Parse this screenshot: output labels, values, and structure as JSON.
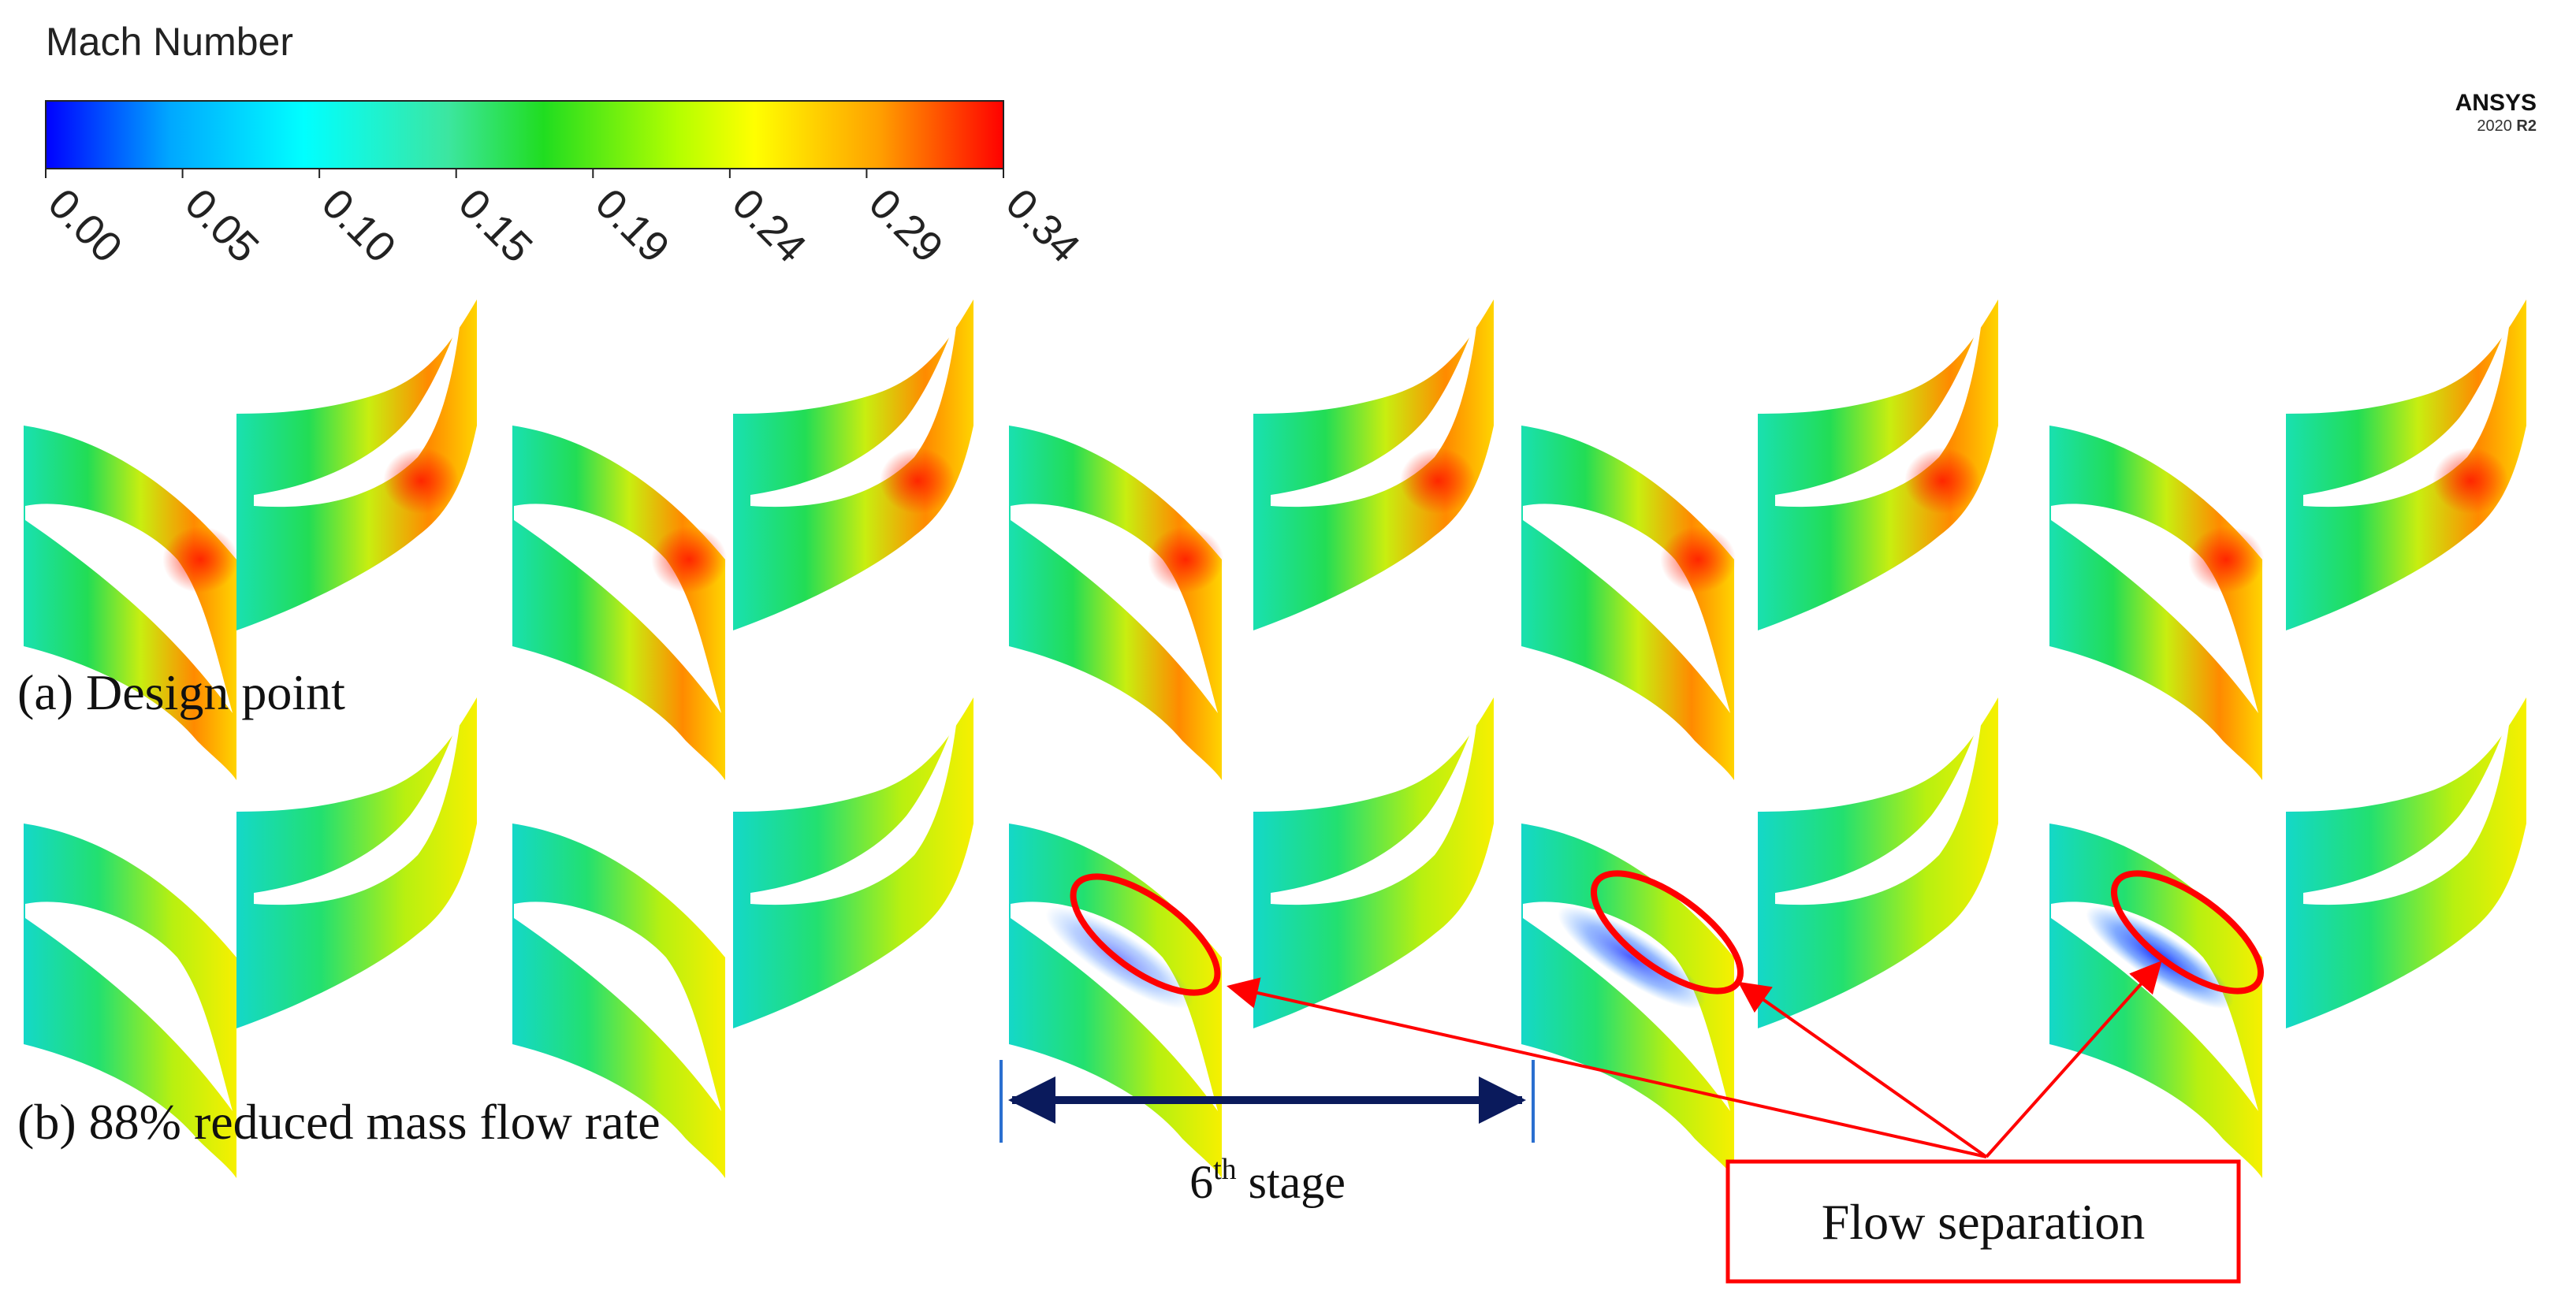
{
  "colorbar": {
    "title": "Mach Number",
    "ticks": [
      "0.00",
      "0.05",
      "0.10",
      "0.15",
      "0.19",
      "0.24",
      "0.29",
      "0.34"
    ],
    "colors": [
      "#0000ff",
      "#00b4ff",
      "#00ffff",
      "#33ee88",
      "#00dd00",
      "#aaff00",
      "#ffff00",
      "#ff9900",
      "#ff0000"
    ]
  },
  "logo": {
    "brand": "ANSYS",
    "version": "2020",
    "release": "R2"
  },
  "rows": [
    {
      "label": "(a) Design point",
      "case": "design"
    },
    {
      "label": "(b) 88% reduced mass flow rate",
      "case": "reduced"
    }
  ],
  "stage_marker": {
    "base": "6",
    "sup": "th",
    "rest": " stage"
  },
  "callout": {
    "label": "Flow separation",
    "color": "#ff0000"
  },
  "passages_per_row": 10
}
